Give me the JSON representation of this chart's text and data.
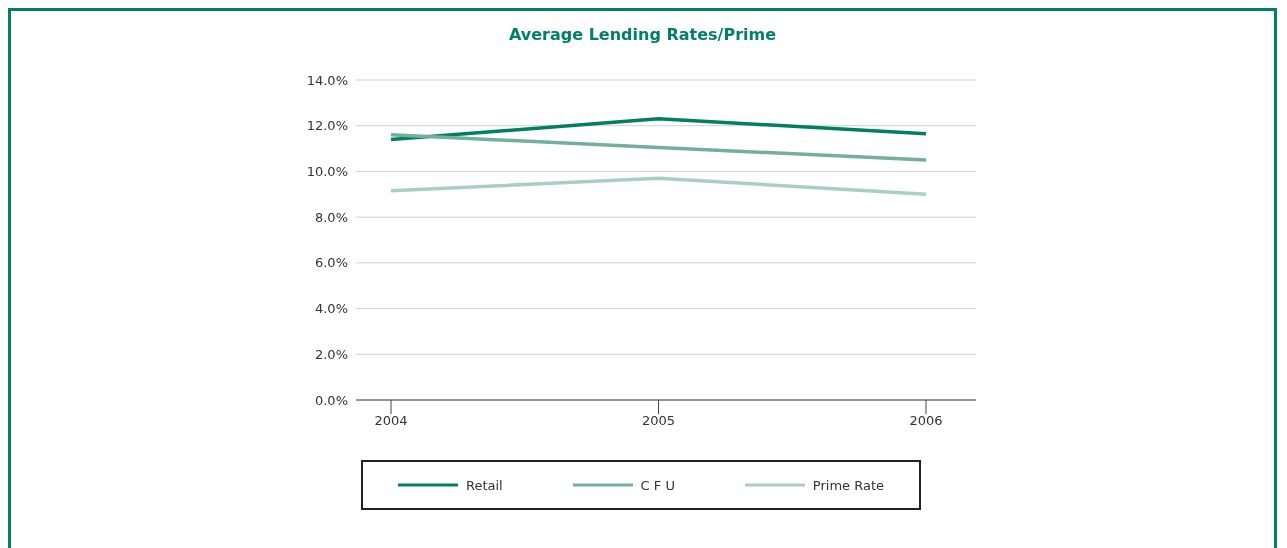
{
  "chart_data": {
    "type": "line",
    "title": "Average Lending Rates/Prime",
    "categories": [
      "2004",
      "2005",
      "2006"
    ],
    "series": [
      {
        "name": "Retail",
        "color": "#007f62",
        "values": [
          11.4,
          12.3,
          11.65
        ]
      },
      {
        "name": "C F U",
        "color": "#72b09c",
        "values": [
          11.6,
          11.05,
          10.5
        ]
      },
      {
        "name": "Prime Rate",
        "color": "#a8cfc0",
        "values": [
          9.15,
          9.7,
          9.0
        ]
      }
    ],
    "ylim": [
      0,
      14
    ],
    "yticks": [
      {
        "value": 0,
        "label": "0.0%"
      },
      {
        "value": 2,
        "label": "2.0%"
      },
      {
        "value": 4,
        "label": "4.0%"
      },
      {
        "value": 6,
        "label": "6.0%"
      },
      {
        "value": 8,
        "label": "8.0%"
      },
      {
        "value": 10,
        "label": "10.0%"
      },
      {
        "value": 12,
        "label": "12.0%"
      },
      {
        "value": 14,
        "label": "14.0%"
      }
    ],
    "grid": "y",
    "legend": "bottom",
    "marker": "none",
    "line_style": "solid"
  }
}
